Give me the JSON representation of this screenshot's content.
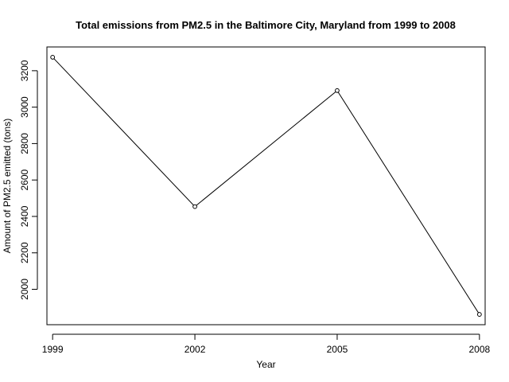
{
  "chart_data": {
    "type": "line",
    "title": "Total emissions from PM2.5 in the Baltimore City, Maryland from 1999 to 2008",
    "xlabel": "Year",
    "ylabel": "Amount of PM2.5 emitted (tons)",
    "x": [
      1999,
      2002,
      2005,
      2008
    ],
    "y": [
      3274,
      2454,
      3091,
      1862
    ],
    "x_ticks": [
      1999,
      2002,
      2005,
      2008
    ],
    "x_tick_labels": [
      "1999",
      "2002",
      "2005",
      "2008"
    ],
    "y_ticks": [
      2000,
      2200,
      2400,
      2600,
      2800,
      3000,
      3200
    ],
    "y_tick_labels": [
      "2000",
      "2200",
      "2400",
      "2600",
      "2800",
      "3000",
      "3200"
    ],
    "xlim": [
      1998.88,
      2008.12
    ],
    "ylim": [
      1805.5,
      3330.5
    ],
    "grid": false,
    "markers": "open-circle",
    "colors": {
      "line": "#000000",
      "axis": "#000000",
      "background": "#ffffff"
    }
  }
}
